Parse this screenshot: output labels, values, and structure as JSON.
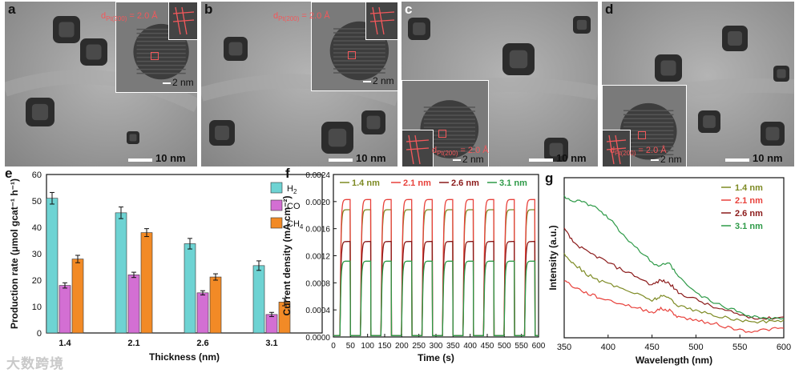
{
  "panels_tem": [
    {
      "letter": "a",
      "d_label": "d",
      "d_sub": "Pt(200)",
      "d_value": " = 2.0 Å",
      "inset_scale": "2 nm",
      "scale": "10 nm"
    },
    {
      "letter": "b",
      "d_label": "d",
      "d_sub": "Pt(200)",
      "d_value": " = 2.0 Å",
      "inset_scale": "2 nm",
      "scale": "10 nm"
    },
    {
      "letter": "c",
      "d_label": "d",
      "d_sub": "Pt(200)",
      "d_value": " = 2.0 Å",
      "inset_scale": "2 nm",
      "scale": "10 nm"
    },
    {
      "letter": "d",
      "d_label": "d",
      "d_sub": "Pt(200)",
      "d_value": " = 2.0 Å",
      "inset_scale": "2 nm",
      "scale": "10 nm"
    }
  ],
  "watermark": "大数跨境",
  "chart_data": [
    {
      "panel": "e",
      "type": "bar",
      "categories": [
        "1.4",
        "2.1",
        "2.6",
        "3.1"
      ],
      "xlabel": "Thickness (nm)",
      "ylabel": "Production rate (μmol gcat⁻¹ h⁻¹)",
      "ylim": [
        0,
        60
      ],
      "yticks": [
        0,
        10,
        20,
        30,
        40,
        50,
        60
      ],
      "legend_position": "top-right",
      "series": [
        {
          "name": "H2",
          "color": "#6ed3d3",
          "values": [
            51,
            45.5,
            33.8,
            25.5
          ],
          "errors": [
            2.2,
            2.2,
            2.0,
            1.8
          ]
        },
        {
          "name": "CO",
          "color": "#d36fd3",
          "values": [
            18,
            22,
            15.2,
            7
          ],
          "errors": [
            1.0,
            1.0,
            0.8,
            0.8
          ]
        },
        {
          "name": "CH4",
          "color": "#f28a26",
          "values": [
            28,
            38,
            21.2,
            11.7
          ],
          "errors": [
            1.4,
            1.5,
            1.2,
            1.4
          ]
        }
      ]
    },
    {
      "panel": "f",
      "type": "line",
      "xlabel": "Time (s)",
      "ylabel": "Current density (mA cm⁻²)",
      "xlim": [
        0,
        600
      ],
      "ylim": [
        0,
        0.0024
      ],
      "xticks": [
        0,
        50,
        100,
        150,
        200,
        250,
        300,
        350,
        400,
        450,
        500,
        550,
        600
      ],
      "yticks": [
        "0.0000",
        "0.0004",
        "0.0008",
        "0.0012",
        "0.0016",
        "0.0020",
        "0.0024"
      ],
      "period_s": 60,
      "on_start_s": 20,
      "on_duration_s": 30,
      "legend_position": "top",
      "series": [
        {
          "name": "1.4 nm",
          "color": "#7d8a23",
          "plateau": 0.00188
        },
        {
          "name": "2.1 nm",
          "color": "#e8413b",
          "plateau": 0.00203
        },
        {
          "name": "2.6 nm",
          "color": "#8b1a1a",
          "plateau": 0.00141
        },
        {
          "name": "3.1 nm",
          "color": "#2e9a48",
          "plateau": 0.00112
        }
      ]
    },
    {
      "panel": "g",
      "type": "line",
      "xlabel": "Wavelength (nm)",
      "ylabel": "Intensity (a.u.)",
      "xlim": [
        350,
        600
      ],
      "xticks": [
        350,
        400,
        450,
        500,
        550,
        600
      ],
      "legend_position": "top-right",
      "series": [
        {
          "name": "1.4 nm",
          "color": "#7d8a23",
          "x": [
            350,
            360,
            375,
            390,
            410,
            430,
            450,
            460,
            470,
            480,
            500,
            520,
            540,
            560,
            580,
            600
          ],
          "y": [
            0.52,
            0.47,
            0.4,
            0.355,
            0.32,
            0.28,
            0.235,
            0.26,
            0.25,
            0.2,
            0.17,
            0.14,
            0.12,
            0.1,
            0.1,
            0.11
          ]
        },
        {
          "name": "2.1 nm",
          "color": "#e8413b",
          "x": [
            350,
            360,
            375,
            390,
            410,
            430,
            450,
            460,
            470,
            480,
            500,
            520,
            540,
            560,
            580,
            600
          ],
          "y": [
            0.36,
            0.32,
            0.28,
            0.25,
            0.22,
            0.19,
            0.16,
            0.18,
            0.17,
            0.13,
            0.11,
            0.09,
            0.06,
            0.04,
            0.05,
            0.06
          ]
        },
        {
          "name": "2.6 nm",
          "color": "#8b1a1a",
          "x": [
            350,
            360,
            375,
            390,
            410,
            430,
            450,
            460,
            470,
            480,
            500,
            520,
            540,
            560,
            580,
            600
          ],
          "y": [
            0.68,
            0.6,
            0.54,
            0.5,
            0.44,
            0.39,
            0.33,
            0.36,
            0.34,
            0.28,
            0.24,
            0.19,
            0.16,
            0.13,
            0.12,
            0.13
          ]
        },
        {
          "name": "3.1 nm",
          "color": "#2e9a48",
          "x": [
            350,
            360,
            375,
            390,
            405,
            420,
            440,
            455,
            470,
            480,
            500,
            520,
            540,
            560,
            580,
            600
          ],
          "y": [
            0.88,
            0.86,
            0.84,
            0.8,
            0.72,
            0.63,
            0.52,
            0.45,
            0.46,
            0.38,
            0.28,
            0.22,
            0.18,
            0.14,
            0.12,
            0.12
          ]
        }
      ]
    }
  ]
}
